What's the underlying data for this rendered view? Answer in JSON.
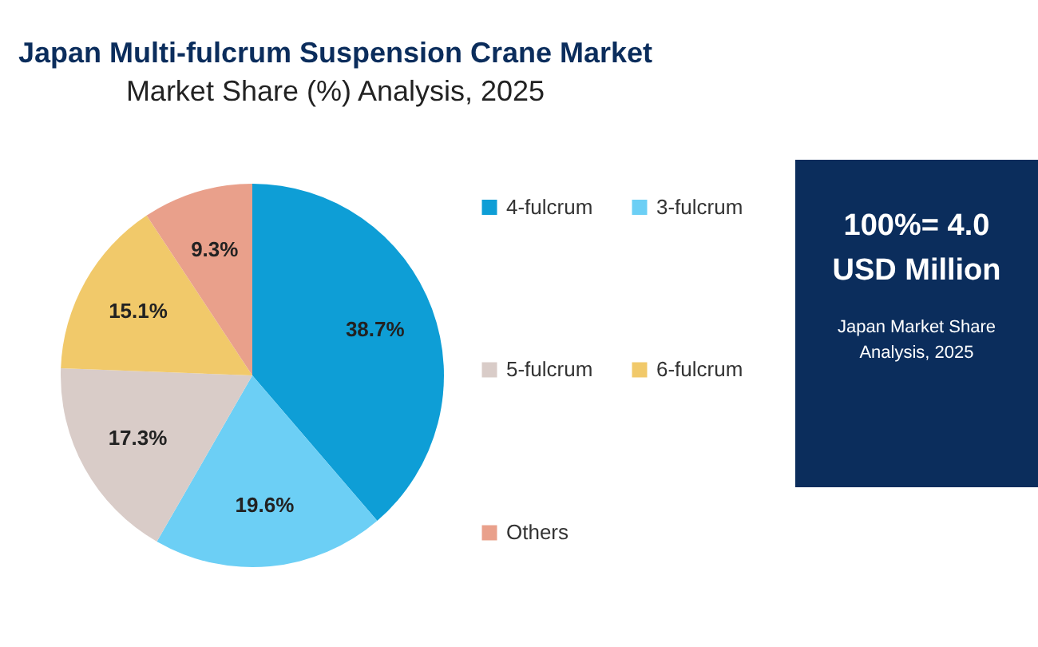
{
  "chart_data": {
    "type": "pie",
    "title": "Japan Multi-fulcrum Suspension Crane Market",
    "subtitle": "Market Share (%) Analysis, 2025",
    "categories": [
      "4-fulcrum",
      "3-fulcrum",
      "5-fulcrum",
      "6-fulcrum",
      "Others"
    ],
    "values": [
      38.7,
      19.6,
      17.3,
      15.1,
      9.3
    ],
    "value_labels": [
      "38.7%",
      "19.6%",
      "17.3%",
      "15.1%",
      "9.3%"
    ],
    "colors": [
      "#0e9ed6",
      "#6ccff5",
      "#d9ccc8",
      "#f1c96a",
      "#e9a08b"
    ],
    "legend": "right",
    "annotations": [
      "100%= 4.0",
      "USD Million",
      "Japan Market Share",
      "Analysis, 2025"
    ]
  }
}
